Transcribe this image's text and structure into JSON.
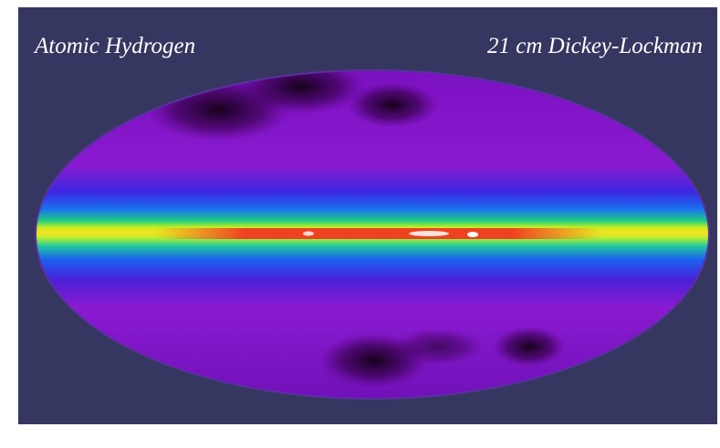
{
  "header": {
    "left": "Atomic Hydrogen",
    "right": "21 cm Dickey-Lockman"
  }
}
